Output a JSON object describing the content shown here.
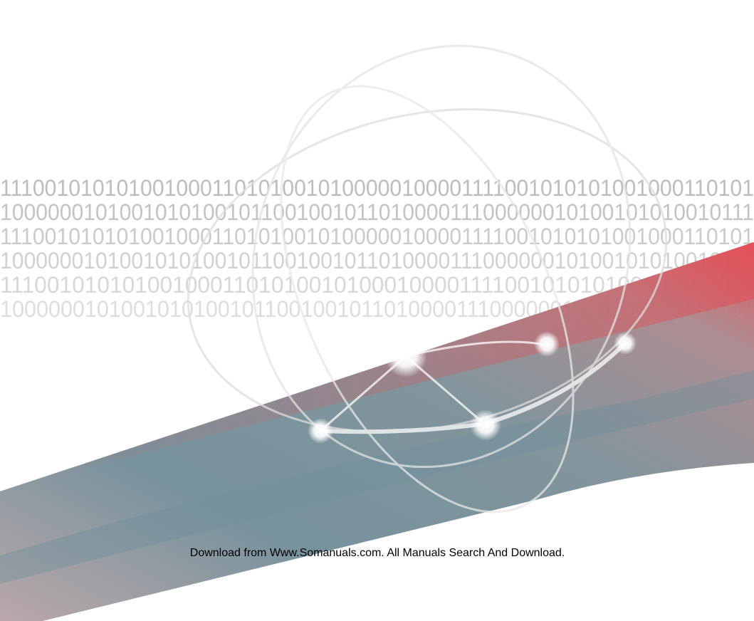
{
  "binary_rows": [
    "1110010101010010001101010010100000100001111001010101001000110101",
    "1000000101001010100101100100101101000011100000010100101010010111",
    "1110010101010010001101010010100000100001111001010101001000110101",
    "1000000101001010100101100100101101000011100000010100101010010111",
    "1110010101010010001101010010100010000111100101010100100101011",
    "100000010100101010010110010010110100001110000001010101000110101"
  ],
  "footer": {
    "text": "Download from Www.Somanuals.com. All Manuals Search And Download."
  }
}
